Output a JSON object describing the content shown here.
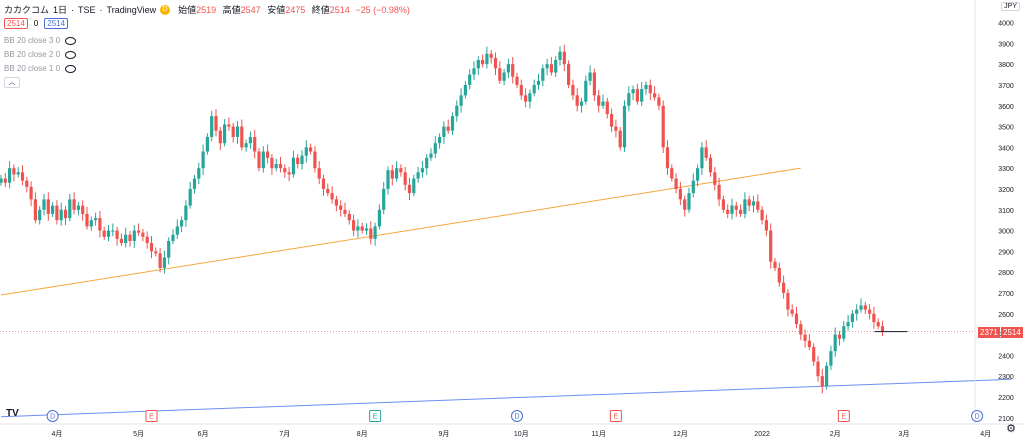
{
  "header": {
    "symbol": "カカクコム",
    "interval": "1日",
    "exchange": "TSE",
    "source": "TradingView",
    "badge": "D",
    "open_label": "始値",
    "open": "2519",
    "high_label": "高値",
    "high": "2547",
    "low_label": "安値",
    "low": "2475",
    "close_label": "終値",
    "close": "2514",
    "change": "−25 (−0.98%)"
  },
  "row2": {
    "box1": "2514",
    "zero": "0",
    "box2": "2514"
  },
  "indicators": [
    "BB 20 close 3 0",
    "BB 20 close 2 0",
    "BB 20 close 1 0"
  ],
  "currency": "JPY",
  "price_tags": {
    "left": "2371",
    "right": "2514"
  },
  "logo": "TV",
  "chart_data": {
    "type": "candlestick",
    "y_ticks": [
      2100,
      2200,
      2300,
      2400,
      2500,
      2600,
      2700,
      2800,
      2900,
      3000,
      3100,
      3200,
      3300,
      3400,
      3500,
      3600,
      3700,
      3800,
      3900,
      4000
    ],
    "ylim": [
      2070,
      4070
    ],
    "x_labels": [
      {
        "label": "4月",
        "i": 13
      },
      {
        "label": "5月",
        "i": 32
      },
      {
        "label": "6月",
        "i": 47
      },
      {
        "label": "7月",
        "i": 66
      },
      {
        "label": "8月",
        "i": 84
      },
      {
        "label": "9月",
        "i": 103
      },
      {
        "label": "10月",
        "i": 121
      },
      {
        "label": "11月",
        "i": 139
      },
      {
        "label": "12月",
        "i": 158
      },
      {
        "label": "2022",
        "i": 177
      },
      {
        "label": "2月",
        "i": 194
      },
      {
        "label": "3月",
        "i": 210
      },
      {
        "label": "4月",
        "i": 229
      }
    ],
    "event_markers": [
      {
        "i": 12,
        "label": "D",
        "kind": "dividend"
      },
      {
        "i": 35,
        "label": "E",
        "kind": "earnings-red"
      },
      {
        "i": 87,
        "label": "E",
        "kind": "earnings-green"
      },
      {
        "i": 120,
        "label": "D",
        "kind": "dividend"
      },
      {
        "i": 143,
        "label": "E",
        "kind": "earnings-red"
      },
      {
        "i": 196,
        "label": "E",
        "kind": "earnings-red"
      },
      {
        "i": 227,
        "label": "D",
        "kind": "dividend"
      }
    ],
    "trendlines": [
      {
        "name": "",
        "color": "#f7a73d",
        "p1": {
          "i": 0,
          "v": 2690
        },
        "p2": {
          "i": 186,
          "v": 3300
        }
      },
      {
        "name": "",
        "color": "#6b8ef0",
        "p1": {
          "i": 0,
          "v": 2105
        },
        "p2": {
          "i": 235,
          "v": 2285
        }
      }
    ],
    "horizontal_lines": [
      {
        "value": 2514,
        "color": "#ef5350",
        "style": "dotted"
      }
    ],
    "series": [
      {
        "name": "",
        "closes": [
          3250,
          3230,
          3300,
          3270,
          3280,
          3240,
          3210,
          3150,
          3050,
          3100,
          3150,
          3080,
          3120,
          3050,
          3100,
          3060,
          3150,
          3100,
          3120,
          3080,
          3020,
          3050,
          3060,
          3000,
          2970,
          3000,
          3000,
          2960,
          2940,
          2980,
          2950,
          3000,
          2990,
          2970,
          2940,
          2900,
          2890,
          2820,
          2870,
          2950,
          2980,
          3020,
          3050,
          3120,
          3200,
          3250,
          3300,
          3380,
          3450,
          3550,
          3480,
          3420,
          3510,
          3500,
          3450,
          3500,
          3400,
          3420,
          3450,
          3380,
          3300,
          3380,
          3350,
          3300,
          3320,
          3300,
          3280,
          3270,
          3350,
          3320,
          3360,
          3400,
          3380,
          3300,
          3250,
          3200,
          3180,
          3150,
          3120,
          3100,
          3080,
          3050,
          3000,
          3020,
          3000,
          3010,
          2960,
          3020,
          3100,
          3200,
          3290,
          3250,
          3300,
          3280,
          3220,
          3180,
          3250,
          3280,
          3300,
          3350,
          3370,
          3420,
          3450,
          3500,
          3480,
          3550,
          3600,
          3650,
          3700,
          3750,
          3780,
          3820,
          3800,
          3850,
          3830,
          3780,
          3720,
          3760,
          3800,
          3740,
          3700,
          3650,
          3620,
          3660,
          3700,
          3720,
          3780,
          3800,
          3760,
          3820,
          3860,
          3800,
          3700,
          3650,
          3600,
          3620,
          3720,
          3760,
          3650,
          3600,
          3620,
          3560,
          3500,
          3480,
          3400,
          3600,
          3660,
          3680,
          3620,
          3680,
          3700,
          3660,
          3640,
          3600,
          3400,
          3300,
          3250,
          3200,
          3150,
          3100,
          3180,
          3240,
          3300,
          3400,
          3350,
          3280,
          3220,
          3150,
          3100,
          3080,
          3120,
          3100,
          3080,
          3150,
          3120,
          3140,
          3100,
          3050,
          3000,
          2850,
          2820,
          2750,
          2700,
          2620,
          2600,
          2550,
          2500,
          2470,
          2440,
          2370,
          2300,
          2250,
          2350,
          2420,
          2500,
          2480,
          2540,
          2560,
          2600,
          2620,
          2640,
          2620,
          2600,
          2560,
          2540,
          2514
        ]
      }
    ]
  }
}
